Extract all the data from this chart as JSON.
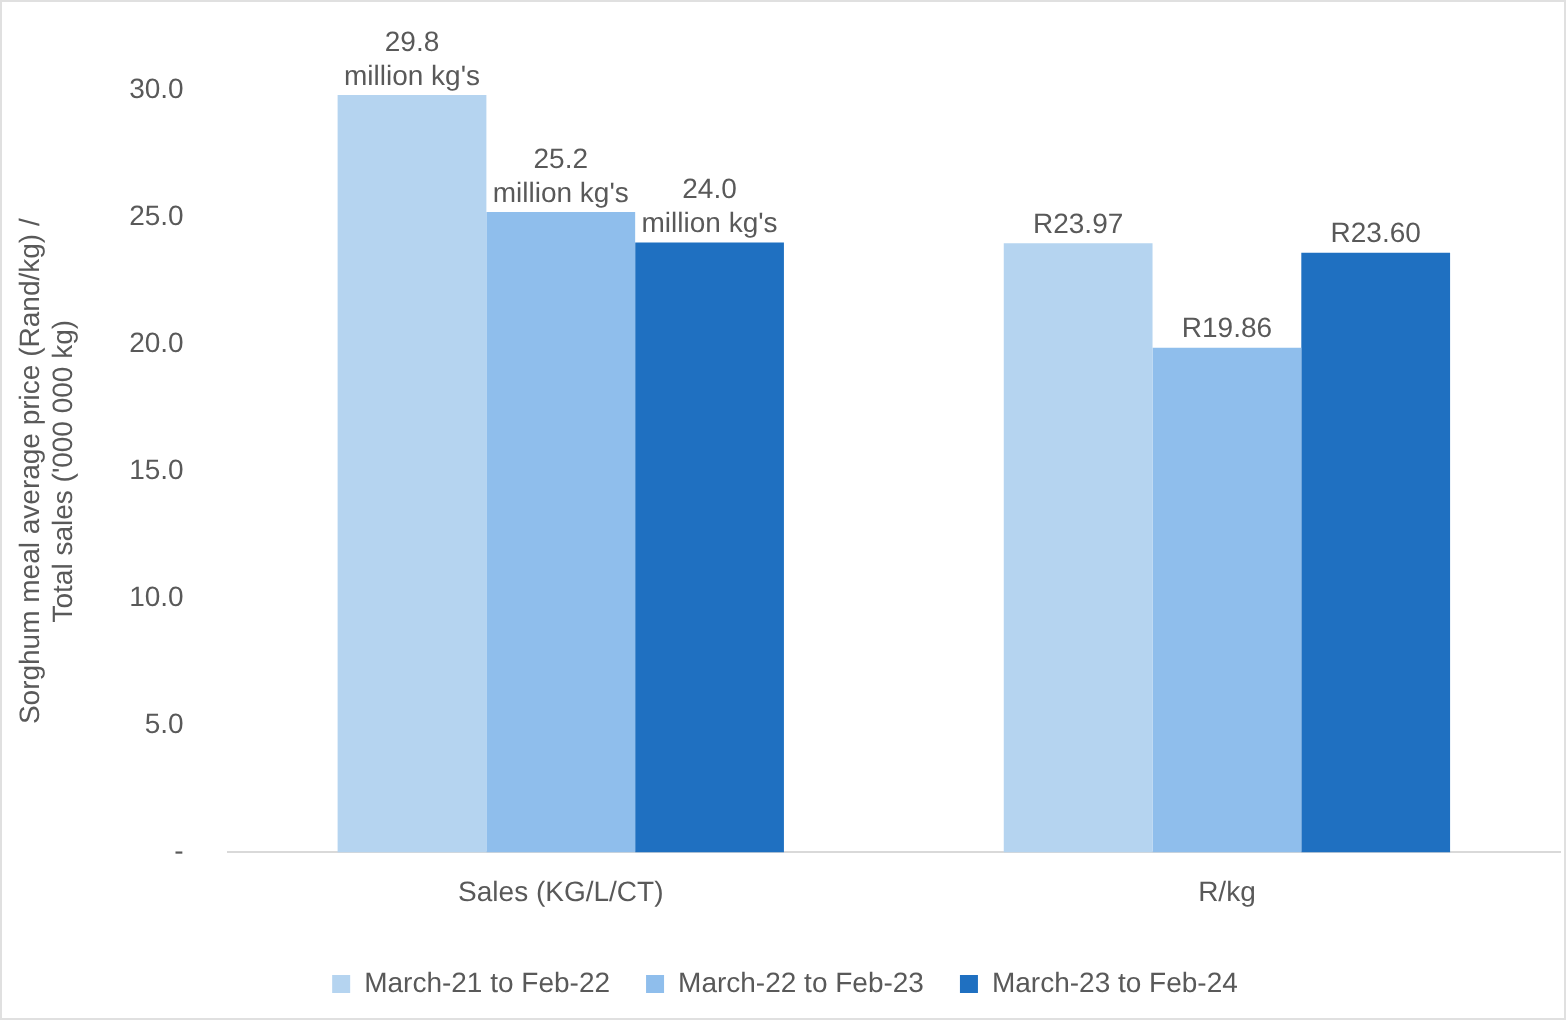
{
  "chart_data": {
    "type": "bar",
    "ylabel": "Sorghum meal average price (Rand/kg) /\nTotal sales ('000 000 kg)",
    "categories": [
      "Sales (KG/L/CT)",
      "R/kg"
    ],
    "series": [
      {
        "name": "March-21 to Feb-22",
        "color": "#b5d4f0",
        "values": [
          29.8,
          23.97
        ],
        "value_labels": [
          "29.8",
          "R23.97"
        ]
      },
      {
        "name": "March-22 to Feb-23",
        "color": "#8fbeec",
        "values": [
          25.2,
          19.86
        ],
        "value_labels": [
          "25.2",
          "R19.86"
        ]
      },
      {
        "name": "March-23 to Feb-24",
        "color": "#1f70c1",
        "values": [
          24.0,
          23.6
        ],
        "value_labels": [
          "24.0",
          "R23.60"
        ]
      }
    ],
    "annotations": [
      "million kg's",
      "million kg's",
      "million kg's"
    ],
    "ylim": [
      0,
      30
    ],
    "yticks": [
      {
        "value": 0,
        "label": "-"
      },
      {
        "value": 5,
        "label": "5.0"
      },
      {
        "value": 10,
        "label": "10.0"
      },
      {
        "value": 15,
        "label": "15.0"
      },
      {
        "value": 20,
        "label": "20.0"
      },
      {
        "value": 25,
        "label": "25.0"
      },
      {
        "value": 30,
        "label": "30.0"
      }
    ],
    "grid": false,
    "legend": "bottom"
  }
}
